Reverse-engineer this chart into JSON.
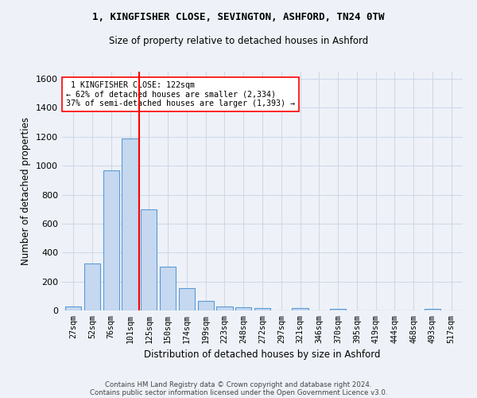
{
  "title1": "1, KINGFISHER CLOSE, SEVINGTON, ASHFORD, TN24 0TW",
  "title2": "Size of property relative to detached houses in Ashford",
  "xlabel": "Distribution of detached houses by size in Ashford",
  "ylabel": "Number of detached properties",
  "footer1": "Contains HM Land Registry data © Crown copyright and database right 2024.",
  "footer2": "Contains public sector information licensed under the Open Government Licence v3.0.",
  "categories": [
    "27sqm",
    "52sqm",
    "76sqm",
    "101sqm",
    "125sqm",
    "150sqm",
    "174sqm",
    "199sqm",
    "223sqm",
    "248sqm",
    "272sqm",
    "297sqm",
    "321sqm",
    "346sqm",
    "370sqm",
    "395sqm",
    "419sqm",
    "444sqm",
    "468sqm",
    "493sqm",
    "517sqm"
  ],
  "values": [
    25,
    325,
    970,
    1190,
    700,
    300,
    155,
    65,
    30,
    20,
    15,
    0,
    15,
    0,
    10,
    0,
    0,
    0,
    0,
    10,
    0
  ],
  "bar_color": "#c5d8f0",
  "bar_edge_color": "#5b9bd5",
  "grid_color": "#d0d8e8",
  "bg_color": "#eef2f8",
  "marker_label": "1 KINGFISHER CLOSE: 122sqm",
  "marker_left_pct": "62% of detached houses are smaller (2,334)",
  "marker_right_pct": "37% of semi-detached houses are larger (1,393)",
  "marker_color": "red",
  "annotation_box_color": "white",
  "annotation_box_edge": "red",
  "ylim": [
    0,
    1650
  ],
  "yticks": [
    0,
    200,
    400,
    600,
    800,
    1000,
    1200,
    1400,
    1600
  ]
}
